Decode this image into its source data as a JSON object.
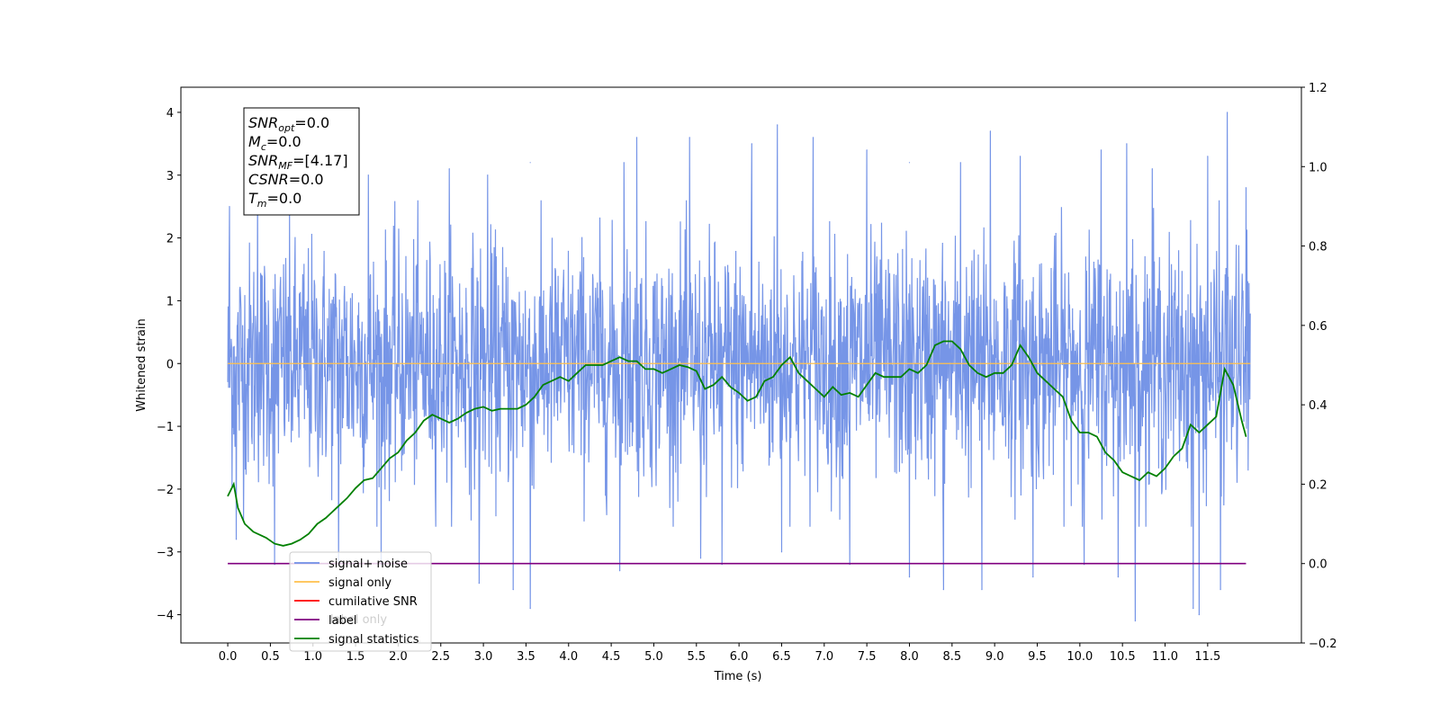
{
  "chart_data": {
    "type": "line",
    "xlabel": "Time (s)",
    "ylabel": "Whitened strain",
    "xlim": [
      -0.55,
      12.6
    ],
    "ylim": [
      -4.45,
      4.4
    ],
    "y2lim": [
      -0.2,
      1.2
    ],
    "x_ticks": [
      0.0,
      0.5,
      1.0,
      1.5,
      2.0,
      2.5,
      3.0,
      3.5,
      4.0,
      4.5,
      5.0,
      5.5,
      6.0,
      6.5,
      7.0,
      7.5,
      8.0,
      8.5,
      9.0,
      9.5,
      10.0,
      10.5,
      11.0,
      11.5
    ],
    "x_tick_labels": [
      "0.0",
      "0.5",
      "1.0",
      "1.5",
      "2.0",
      "2.5",
      "3.0",
      "3.5",
      "4.0",
      "4.5",
      "5.0",
      "5.5",
      "6.0",
      "6.5",
      "7.0",
      "7.5",
      "8.0",
      "8.5",
      "9.0",
      "9.5",
      "10.0",
      "10.5",
      "11.0",
      "11.5"
    ],
    "y_ticks": [
      -4,
      -3,
      -2,
      -1,
      0,
      1,
      2,
      3,
      4
    ],
    "y_tick_labels": [
      "−4",
      "−3",
      "−2",
      "−1",
      "0",
      "1",
      "2",
      "3",
      "4"
    ],
    "y2_ticks": [
      -0.2,
      0.0,
      0.2,
      0.4,
      0.6,
      0.8,
      1.0,
      1.2
    ],
    "y2_tick_labels": [
      "−0.2",
      "0.0",
      "0.2",
      "0.4",
      "0.6",
      "0.8",
      "1.0",
      "1.2"
    ],
    "grid": false,
    "legend": {
      "placement": "lower-left",
      "entries": [
        {
          "label": "signal+ noise",
          "color": "#6f8fe6",
          "series": "signal_noise"
        },
        {
          "label": "signal only",
          "color": "#ffc04d",
          "series": "signal_only"
        },
        {
          "label": "cumilative SNR",
          "color": "#ff0000",
          "series": "cumulative_snr"
        },
        {
          "label": "label",
          "color": "#800080",
          "series": "label"
        },
        {
          "label": "signal statistics",
          "color": "#008000",
          "series": "signal_statistics"
        }
      ],
      "occluded_label": "label only"
    },
    "info_box": {
      "lines": [
        {
          "main": "SNR",
          "sub": "opt",
          "value": "=0.0"
        },
        {
          "main": "M",
          "sub": "c",
          "value": "=0.0"
        },
        {
          "main": "SNR",
          "sub": "MF",
          "value": "=[4.17]"
        },
        {
          "main": "CSNR",
          "sub": "",
          "value": "=0.0"
        },
        {
          "main": "T",
          "sub": "m",
          "value": "=0.0"
        }
      ]
    },
    "series": [
      {
        "name": "signal+ noise",
        "key": "signal_noise",
        "axis": "left",
        "color": "#6f8fe6",
        "x_range": [
          0.0,
          12.0
        ],
        "envelope": "noise band approximately ±1.2 to ±1.5 with spikes from about −4.1 to +4.0",
        "spikes_high": [
          {
            "x": 0.02,
            "y": 2.5
          },
          {
            "x": 0.35,
            "y": 2.8
          },
          {
            "x": 1.3,
            "y": 3.0
          },
          {
            "x": 1.65,
            "y": 3.0
          },
          {
            "x": 2.6,
            "y": 3.1
          },
          {
            "x": 3.05,
            "y": 3.0
          },
          {
            "x": 3.55,
            "y": 3.2
          },
          {
            "x": 4.65,
            "y": 3.2
          },
          {
            "x": 4.8,
            "y": 3.6
          },
          {
            "x": 5.42,
            "y": 3.6
          },
          {
            "x": 6.15,
            "y": 3.5
          },
          {
            "x": 6.45,
            "y": 3.8
          },
          {
            "x": 6.87,
            "y": 3.6
          },
          {
            "x": 7.5,
            "y": 3.4
          },
          {
            "x": 8.0,
            "y": 3.2
          },
          {
            "x": 8.6,
            "y": 3.2
          },
          {
            "x": 8.95,
            "y": 3.7
          },
          {
            "x": 9.3,
            "y": 3.3
          },
          {
            "x": 10.25,
            "y": 3.4
          },
          {
            "x": 10.55,
            "y": 3.5
          },
          {
            "x": 10.85,
            "y": 3.1
          },
          {
            "x": 11.5,
            "y": 3.3
          },
          {
            "x": 11.73,
            "y": 4.0
          },
          {
            "x": 11.95,
            "y": 2.8
          }
        ],
        "spikes_low": [
          {
            "x": 0.1,
            "y": -2.8
          },
          {
            "x": 0.55,
            "y": -3.2
          },
          {
            "x": 1.3,
            "y": -3.2
          },
          {
            "x": 1.8,
            "y": -3.2
          },
          {
            "x": 2.95,
            "y": -3.5
          },
          {
            "x": 3.35,
            "y": -3.6
          },
          {
            "x": 3.55,
            "y": -3.9
          },
          {
            "x": 4.6,
            "y": -3.3
          },
          {
            "x": 5.55,
            "y": -3.1
          },
          {
            "x": 5.8,
            "y": -3.2
          },
          {
            "x": 6.5,
            "y": -3.0
          },
          {
            "x": 7.3,
            "y": -3.2
          },
          {
            "x": 8.0,
            "y": -3.4
          },
          {
            "x": 8.4,
            "y": -3.6
          },
          {
            "x": 8.85,
            "y": -3.6
          },
          {
            "x": 9.45,
            "y": -3.4
          },
          {
            "x": 10.05,
            "y": -3.2
          },
          {
            "x": 10.45,
            "y": -3.4
          },
          {
            "x": 10.65,
            "y": -4.1
          },
          {
            "x": 11.33,
            "y": -3.9
          },
          {
            "x": 11.4,
            "y": -4.0
          },
          {
            "x": 11.65,
            "y": -3.6
          }
        ]
      },
      {
        "name": "signal only",
        "key": "signal_only",
        "axis": "left",
        "color": "#ffc04d",
        "x": [
          0.0,
          12.0
        ],
        "values": [
          0.0,
          0.0
        ]
      },
      {
        "name": "label",
        "key": "label",
        "axis": "right",
        "color": "#800080",
        "x": [
          0.0,
          11.95
        ],
        "values": [
          0.0,
          0.0
        ]
      },
      {
        "name": "signal statistics",
        "key": "signal_statistics",
        "axis": "right",
        "color": "#008000",
        "x": [
          0.0,
          0.07,
          0.12,
          0.2,
          0.3,
          0.45,
          0.55,
          0.65,
          0.75,
          0.85,
          0.95,
          1.05,
          1.15,
          1.3,
          1.4,
          1.5,
          1.6,
          1.7,
          1.8,
          1.9,
          2.0,
          2.1,
          2.2,
          2.3,
          2.4,
          2.5,
          2.6,
          2.7,
          2.8,
          2.9,
          3.0,
          3.1,
          3.2,
          3.3,
          3.4,
          3.5,
          3.6,
          3.7,
          3.8,
          3.9,
          4.0,
          4.1,
          4.2,
          4.3,
          4.4,
          4.5,
          4.6,
          4.7,
          4.8,
          4.9,
          5.0,
          5.1,
          5.2,
          5.3,
          5.4,
          5.5,
          5.6,
          5.7,
          5.8,
          5.9,
          6.0,
          6.1,
          6.2,
          6.3,
          6.4,
          6.5,
          6.6,
          6.7,
          6.8,
          6.9,
          7.0,
          7.1,
          7.2,
          7.3,
          7.4,
          7.5,
          7.6,
          7.7,
          7.8,
          7.9,
          8.0,
          8.1,
          8.2,
          8.3,
          8.4,
          8.5,
          8.6,
          8.7,
          8.8,
          8.9,
          9.0,
          9.1,
          9.2,
          9.3,
          9.4,
          9.5,
          9.6,
          9.7,
          9.8,
          9.9,
          10.0,
          10.1,
          10.2,
          10.3,
          10.4,
          10.5,
          10.6,
          10.7,
          10.8,
          10.9,
          11.0,
          11.1,
          11.2,
          11.3,
          11.4,
          11.5,
          11.6,
          11.7,
          11.8,
          11.9,
          11.95
        ],
        "values": [
          0.17,
          0.2,
          0.14,
          0.1,
          0.08,
          0.065,
          0.05,
          0.045,
          0.05,
          0.06,
          0.075,
          0.1,
          0.115,
          0.145,
          0.165,
          0.19,
          0.21,
          0.215,
          0.24,
          0.265,
          0.28,
          0.31,
          0.33,
          0.36,
          0.375,
          0.365,
          0.355,
          0.365,
          0.38,
          0.39,
          0.395,
          0.385,
          0.39,
          0.39,
          0.39,
          0.4,
          0.42,
          0.45,
          0.46,
          0.47,
          0.46,
          0.48,
          0.5,
          0.5,
          0.5,
          0.51,
          0.52,
          0.51,
          0.51,
          0.49,
          0.49,
          0.48,
          0.49,
          0.5,
          0.495,
          0.485,
          0.44,
          0.45,
          0.47,
          0.445,
          0.43,
          0.41,
          0.42,
          0.46,
          0.47,
          0.5,
          0.52,
          0.48,
          0.46,
          0.44,
          0.42,
          0.445,
          0.425,
          0.43,
          0.42,
          0.45,
          0.48,
          0.47,
          0.47,
          0.47,
          0.49,
          0.48,
          0.5,
          0.55,
          0.56,
          0.56,
          0.54,
          0.5,
          0.48,
          0.47,
          0.48,
          0.48,
          0.5,
          0.55,
          0.52,
          0.48,
          0.46,
          0.44,
          0.42,
          0.36,
          0.33,
          0.33,
          0.32,
          0.28,
          0.26,
          0.23,
          0.22,
          0.21,
          0.23,
          0.22,
          0.24,
          0.27,
          0.29,
          0.35,
          0.33,
          0.35,
          0.37,
          0.49,
          0.45,
          0.36,
          0.32
        ]
      }
    ]
  }
}
